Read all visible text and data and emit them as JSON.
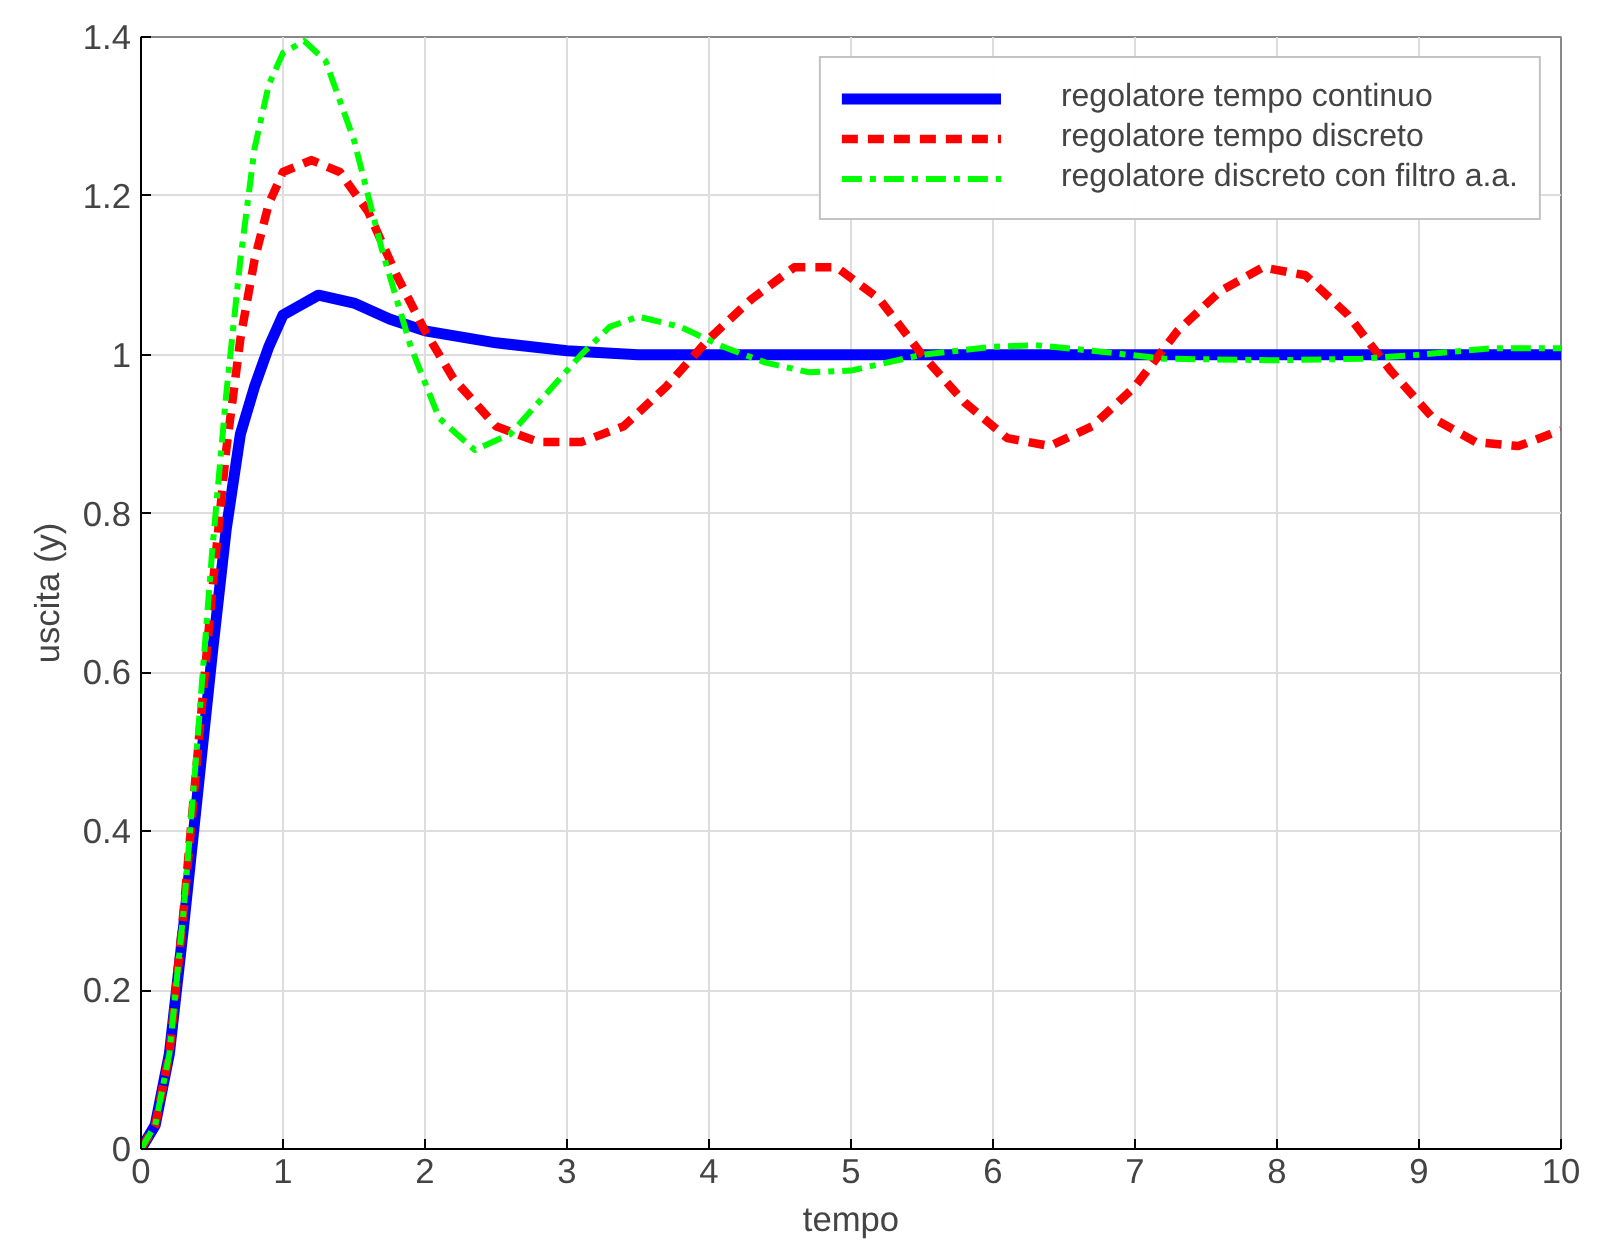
{
  "chart_data": {
    "type": "line",
    "xlabel": "tempo",
    "ylabel": "uscita (y)",
    "xlim": [
      0,
      10
    ],
    "ylim": [
      0,
      1.4
    ],
    "xticks": [
      0,
      1,
      2,
      3,
      4,
      5,
      6,
      7,
      8,
      9,
      10
    ],
    "yticks": [
      0,
      0.2,
      0.4,
      0.6,
      0.8,
      1,
      1.2,
      1.4
    ],
    "grid": true,
    "legend": "top right",
    "series": [
      {
        "name": "regolatore tempo continuo",
        "color": "#0000ff",
        "line_style": "solid",
        "x": [
          0,
          0.1,
          0.2,
          0.3,
          0.4,
          0.5,
          0.6,
          0.7,
          0.8,
          0.9,
          1.0,
          1.1,
          1.25,
          1.5,
          1.75,
          2.0,
          2.5,
          3,
          3.5,
          10
        ],
        "values": [
          0,
          0.03,
          0.12,
          0.28,
          0.45,
          0.62,
          0.78,
          0.9,
          0.96,
          1.01,
          1.05,
          1.06,
          1.075,
          1.065,
          1.045,
          1.03,
          1.015,
          1.005,
          1.0,
          1.0
        ]
      },
      {
        "name": "regolatore tempo discreto",
        "color": "#ff0000",
        "line_style": "dashed",
        "x": [
          0,
          0.1,
          0.2,
          0.3,
          0.4,
          0.5,
          0.6,
          0.7,
          0.8,
          0.9,
          1.0,
          1.2,
          1.4,
          1.6,
          1.8,
          2.0,
          2.2,
          2.5,
          2.8,
          3.1,
          3.4,
          3.7,
          4,
          4.3,
          4.6,
          4.9,
          5.2,
          5.5,
          5.8,
          6.1,
          6.4,
          6.7,
          7,
          7.3,
          7.6,
          7.9,
          8.2,
          8.5,
          8.8,
          9.1,
          9.4,
          9.7,
          10
        ],
        "values": [
          0,
          0.03,
          0.12,
          0.3,
          0.5,
          0.7,
          0.88,
          1.02,
          1.12,
          1.19,
          1.23,
          1.245,
          1.23,
          1.18,
          1.1,
          1.03,
          0.97,
          0.91,
          0.89,
          0.89,
          0.91,
          0.96,
          1.02,
          1.07,
          1.11,
          1.11,
          1.07,
          1.0,
          0.94,
          0.895,
          0.885,
          0.91,
          0.96,
          1.03,
          1.08,
          1.11,
          1.1,
          1.05,
          0.98,
          0.92,
          0.89,
          0.885,
          0.905
        ]
      },
      {
        "name": "regolatore discreto con filtro a.a.",
        "color": "#00ff00",
        "line_style": "dashdot",
        "x": [
          0,
          0.1,
          0.2,
          0.3,
          0.4,
          0.5,
          0.6,
          0.7,
          0.8,
          0.9,
          1.0,
          1.15,
          1.3,
          1.5,
          1.7,
          1.9,
          2.1,
          2.35,
          2.6,
          2.9,
          3.1,
          3.3,
          3.5,
          3.8,
          4.1,
          4.4,
          4.7,
          5.0,
          5.5,
          6.0,
          6.3,
          6.7,
          7.2,
          8,
          8.6,
          9,
          9.5,
          10
        ],
        "values": [
          0,
          0.03,
          0.12,
          0.3,
          0.52,
          0.75,
          0.95,
          1.12,
          1.26,
          1.34,
          1.38,
          1.395,
          1.37,
          1.27,
          1.13,
          1.01,
          0.92,
          0.88,
          0.9,
          0.96,
          1.0,
          1.035,
          1.048,
          1.035,
          1.01,
          0.99,
          0.978,
          0.98,
          1.0,
          1.01,
          1.012,
          1.005,
          0.995,
          0.993,
          0.995,
          1.0,
          1.008,
          1.008
        ]
      }
    ]
  }
}
